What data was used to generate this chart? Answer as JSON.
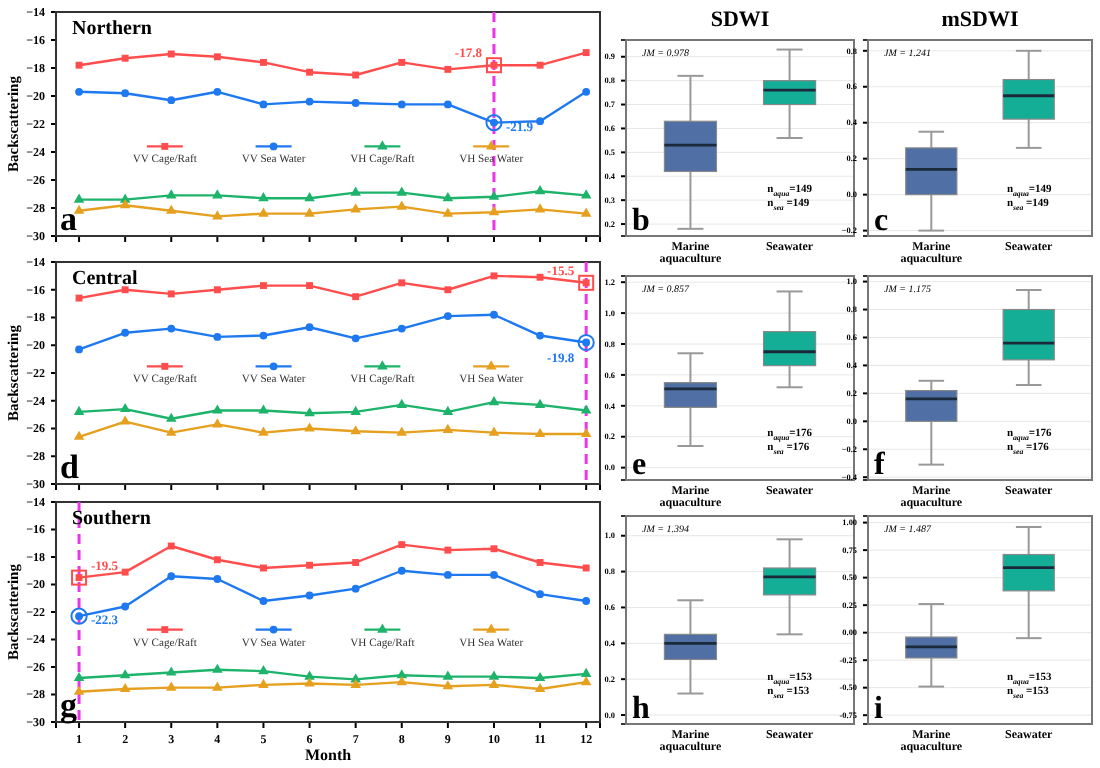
{
  "chart_data": [
    {
      "type": "line",
      "title": "Northern",
      "ylabel": "Backscattering",
      "x": [
        1,
        2,
        3,
        4,
        5,
        6,
        7,
        8,
        9,
        10,
        11,
        12
      ],
      "xlim": [
        0.5,
        12.3
      ],
      "xticks": [
        1,
        2,
        3,
        4,
        5,
        6,
        7,
        8,
        9,
        10,
        11,
        12
      ],
      "ylim": [
        -30,
        -14
      ],
      "yticks": [
        -30,
        -28,
        -26,
        -24,
        -22,
        -20,
        -18,
        -16,
        -14
      ],
      "tick_labels": "y",
      "legend": "center",
      "grid": false,
      "series": [
        {
          "name": "VV Cage/Raft",
          "color": "#ff4d4d",
          "marker": "square",
          "values": [
            -17.8,
            -17.3,
            -17.0,
            -17.2,
            -17.6,
            -18.3,
            -18.5,
            -17.6,
            -18.1,
            -17.8,
            -17.8,
            -16.9
          ]
        },
        {
          "name": "VV Sea Water",
          "color": "#1e78f0",
          "marker": "circle",
          "values": [
            -19.7,
            -19.8,
            -20.3,
            -19.7,
            -20.6,
            -20.4,
            -20.5,
            -20.6,
            -20.6,
            -21.9,
            -21.8,
            -19.7
          ]
        },
        {
          "name": "VH Cage/Raft",
          "color": "#1db36b",
          "marker": "triangle",
          "values": [
            -27.4,
            -27.4,
            -27.1,
            -27.1,
            -27.3,
            -27.3,
            -26.9,
            -26.9,
            -27.3,
            -27.2,
            -26.8,
            -27.1
          ]
        },
        {
          "name": "VH Sea Water",
          "color": "#e6a020",
          "marker": "triangle",
          "values": [
            -28.2,
            -27.8,
            -28.2,
            -28.6,
            -28.4,
            -28.4,
            -28.1,
            -27.9,
            -28.4,
            -28.3,
            -28.1,
            -28.4
          ]
        }
      ],
      "ref_lines": [
        {
          "axis": "x",
          "value": 10,
          "color": "#ee33ee",
          "line_style": "dashed"
        }
      ],
      "annotations": [
        {
          "text": "-17.8",
          "x": 10,
          "y": -17.8
        },
        {
          "text": "-21.9",
          "x": 10,
          "y": -21.9
        },
        "a"
      ]
    },
    {
      "type": "box",
      "title": "SDWI",
      "categories": [
        "Marine aquaculture",
        "Seawater"
      ],
      "colors": [
        "#4f6fa5",
        "#14ae96"
      ],
      "ylim": [
        0.15,
        0.97
      ],
      "yticks": [
        0.2,
        0.3,
        0.4,
        0.5,
        0.6,
        0.7,
        0.8,
        0.9
      ],
      "grid": "y",
      "boxes": [
        {
          "low": 0.18,
          "q1": 0.42,
          "median": 0.53,
          "q3": 0.63,
          "high": 0.82
        },
        {
          "low": 0.56,
          "q1": 0.7,
          "median": 0.76,
          "q3": 0.8,
          "high": 0.93
        }
      ],
      "annotations": [
        "JM = 0.978",
        "n$_{aqua}$=149",
        "n$_{sea}$ =149",
        "b"
      ]
    },
    {
      "type": "box",
      "title": "mSDWI",
      "categories": [
        "Marine aquaculture",
        "Seawater"
      ],
      "colors": [
        "#4f6fa5",
        "#14ae96"
      ],
      "ylim": [
        -0.23,
        0.86
      ],
      "yticks": [
        -0.2,
        {
          "value": 0,
          "label": "0.0"
        },
        0.2,
        0.4,
        0.6,
        0.8
      ],
      "grid": "y",
      "boxes": [
        {
          "low": -0.2,
          "q1": 0.0,
          "median": 0.14,
          "q3": 0.26,
          "high": 0.35
        },
        {
          "low": 0.26,
          "q1": 0.42,
          "median": 0.55,
          "q3": 0.64,
          "high": 0.8
        }
      ],
      "annotations": [
        "JM = 1.241",
        "n$_{aqua}$=149",
        "n$_{sea}$ =149",
        "c"
      ]
    },
    {
      "type": "line",
      "title": "Central",
      "ylabel": "Backscattering",
      "x": [
        1,
        2,
        3,
        4,
        5,
        6,
        7,
        8,
        9,
        10,
        11,
        12
      ],
      "xlim": [
        0.5,
        12.3
      ],
      "xticks": [
        1,
        2,
        3,
        4,
        5,
        6,
        7,
        8,
        9,
        10,
        11,
        12
      ],
      "ylim": [
        -30,
        -14
      ],
      "yticks": [
        -30,
        -28,
        -26,
        -24,
        -22,
        -20,
        -18,
        -16,
        -14
      ],
      "tick_labels": "y",
      "legend": "center",
      "grid": false,
      "series": [
        {
          "name": "VV Cage/Raft",
          "color": "#ff4d4d",
          "marker": "square",
          "values": [
            -16.6,
            -16.0,
            -16.3,
            -16.0,
            -15.7,
            -15.7,
            -16.5,
            -15.5,
            -16.0,
            -15.0,
            -15.1,
            -15.5
          ]
        },
        {
          "name": "VV Sea Water",
          "color": "#1e78f0",
          "marker": "circle",
          "values": [
            -20.3,
            -19.1,
            -18.8,
            -19.4,
            -19.3,
            -18.7,
            -19.5,
            -18.8,
            -17.9,
            -17.8,
            -19.3,
            -19.8
          ]
        },
        {
          "name": "VH Cage/Raft",
          "color": "#1db36b",
          "marker": "triangle",
          "values": [
            -24.8,
            -24.6,
            -25.3,
            -24.7,
            -24.7,
            -24.9,
            -24.8,
            -24.3,
            -24.8,
            -24.1,
            -24.3,
            -24.7
          ]
        },
        {
          "name": "VH Sea Water",
          "color": "#e6a020",
          "marker": "triangle",
          "values": [
            -26.6,
            -25.5,
            -26.3,
            -25.7,
            -26.3,
            -26.0,
            -26.2,
            -26.3,
            -26.1,
            -26.3,
            -26.4,
            -26.4
          ]
        }
      ],
      "ref_lines": [
        {
          "axis": "x",
          "value": 12,
          "color": "#ee33ee",
          "line_style": "dashed"
        }
      ],
      "annotations": [
        {
          "text": "-15.5",
          "x": 12,
          "y": -15.5
        },
        {
          "text": "-19.8",
          "x": 12,
          "y": -19.8
        },
        "d"
      ]
    },
    {
      "type": "box",
      "categories": [
        "Marine aquaculture",
        "Seawater"
      ],
      "colors": [
        "#4f6fa5",
        "#14ae96"
      ],
      "ylim": [
        -0.08,
        1.24
      ],
      "yticks": [
        {
          "value": 0,
          "label": "0.0"
        },
        0.2,
        0.4,
        0.6,
        0.8,
        {
          "value": 1,
          "label": "1.0"
        },
        1.2
      ],
      "grid": "y",
      "boxes": [
        {
          "low": 0.14,
          "q1": 0.39,
          "median": 0.51,
          "q3": 0.55,
          "high": 0.74
        },
        {
          "low": 0.52,
          "q1": 0.66,
          "median": 0.75,
          "q3": 0.88,
          "high": 1.14
        }
      ],
      "annotations": [
        "JM = 0.857",
        "n$_{aqua}$=176",
        "n$_{sea}$ =176",
        "e"
      ]
    },
    {
      "type": "box",
      "categories": [
        "Marine aquaculture",
        "Seawater"
      ],
      "colors": [
        "#4f6fa5",
        "#14ae96"
      ],
      "ylim": [
        -0.42,
        1.04
      ],
      "yticks": [
        -0.4,
        -0.2,
        {
          "value": 0,
          "label": "0.0"
        },
        0.2,
        0.4,
        0.6,
        0.8,
        {
          "value": 1,
          "label": "1.0"
        }
      ],
      "grid": "y",
      "boxes": [
        {
          "low": -0.31,
          "q1": 0.0,
          "median": 0.16,
          "q3": 0.22,
          "high": 0.29
        },
        {
          "low": 0.26,
          "q1": 0.44,
          "median": 0.56,
          "q3": 0.8,
          "high": 0.94
        }
      ],
      "annotations": [
        "JM = 1.175",
        "n$_{aqua}$=176",
        "n$_{sea}$ =176",
        "f"
      ]
    },
    {
      "type": "line",
      "title": "Southern",
      "xlabel": "Month",
      "ylabel": "Backscattering",
      "x": [
        1,
        2,
        3,
        4,
        5,
        6,
        7,
        8,
        9,
        10,
        11,
        12
      ],
      "xlim": [
        0.5,
        12.3
      ],
      "xticks": [
        1,
        2,
        3,
        4,
        5,
        6,
        7,
        8,
        9,
        10,
        11,
        12
      ],
      "ylim": [
        -30,
        -14
      ],
      "yticks": [
        -30,
        -28,
        -26,
        -24,
        -22,
        -20,
        -18,
        -16,
        -14
      ],
      "legend": "center",
      "grid": false,
      "series": [
        {
          "name": "VV Cage/Raft",
          "color": "#ff4d4d",
          "marker": "square",
          "values": [
            -19.5,
            -19.1,
            -17.2,
            -18.2,
            -18.8,
            -18.6,
            -18.4,
            -17.1,
            -17.5,
            -17.4,
            -18.4,
            -18.8
          ]
        },
        {
          "name": "VV Sea Water",
          "color": "#1e78f0",
          "marker": "circle",
          "values": [
            -22.3,
            -21.6,
            -19.4,
            -19.6,
            -21.2,
            -20.8,
            -20.3,
            -19.0,
            -19.3,
            -19.3,
            -20.7,
            -21.2
          ]
        },
        {
          "name": "VH Cage/Raft",
          "color": "#1db36b",
          "marker": "triangle",
          "values": [
            -26.8,
            -26.6,
            -26.4,
            -26.2,
            -26.3,
            -26.7,
            -26.9,
            -26.6,
            -26.7,
            -26.7,
            -26.8,
            -26.5
          ]
        },
        {
          "name": "VH Sea Water",
          "color": "#e6a020",
          "marker": "triangle",
          "values": [
            -27.8,
            -27.6,
            -27.5,
            -27.5,
            -27.3,
            -27.2,
            -27.3,
            -27.1,
            -27.4,
            -27.3,
            -27.6,
            -27.1
          ]
        }
      ],
      "ref_lines": [
        {
          "axis": "x",
          "value": 1,
          "color": "#ee33ee",
          "line_style": "dashed"
        }
      ],
      "annotations": [
        {
          "text": "-19.5",
          "x": 1,
          "y": -19.5
        },
        {
          "text": "-22.3",
          "x": 1,
          "y": -22.3
        },
        "g"
      ]
    },
    {
      "type": "box",
      "categories": [
        "Marine aquaculture",
        "Seawater"
      ],
      "colors": [
        "#4f6fa5",
        "#14ae96"
      ],
      "ylim": [
        -0.05,
        1.11
      ],
      "yticks": [
        {
          "value": 0,
          "label": "0.0"
        },
        0.2,
        0.4,
        0.6,
        0.8,
        {
          "value": 1,
          "label": "1.0"
        }
      ],
      "grid": "y",
      "boxes": [
        {
          "low": 0.12,
          "q1": 0.31,
          "median": 0.4,
          "q3": 0.45,
          "high": 0.64
        },
        {
          "low": 0.45,
          "q1": 0.67,
          "median": 0.77,
          "q3": 0.82,
          "high": 0.98
        }
      ],
      "annotations": [
        "JM = 1.394",
        "n$_{aqua}$=153",
        "n$_{sea}$ =153",
        "h"
      ]
    },
    {
      "type": "box",
      "categories": [
        "Marine aquaculture",
        "Seawater"
      ],
      "colors": [
        "#4f6fa5",
        "#14ae96"
      ],
      "ylim": [
        -0.83,
        1.06
      ],
      "yticks": [
        {
          "value": -0.75,
          "label": "-0.75"
        },
        {
          "value": -0.5,
          "label": "-0.50"
        },
        {
          "value": -0.25,
          "label": "-0.25"
        },
        {
          "value": 0,
          "label": "0.00"
        },
        {
          "value": 0.25,
          "label": "0.25"
        },
        {
          "value": 0.5,
          "label": "0.50"
        },
        {
          "value": 0.75,
          "label": "0.75"
        },
        {
          "value": 1,
          "label": "1.00"
        }
      ],
      "grid": "y",
      "boxes": [
        {
          "low": -0.49,
          "q1": -0.23,
          "median": -0.13,
          "q3": -0.04,
          "high": 0.26
        },
        {
          "low": -0.05,
          "q1": 0.38,
          "median": 0.59,
          "q3": 0.71,
          "high": 0.96
        }
      ],
      "annotations": [
        "JM = 1.487",
        "n$_{aqua}$=153",
        "n$_{sea}$ =153",
        "i"
      ]
    }
  ]
}
